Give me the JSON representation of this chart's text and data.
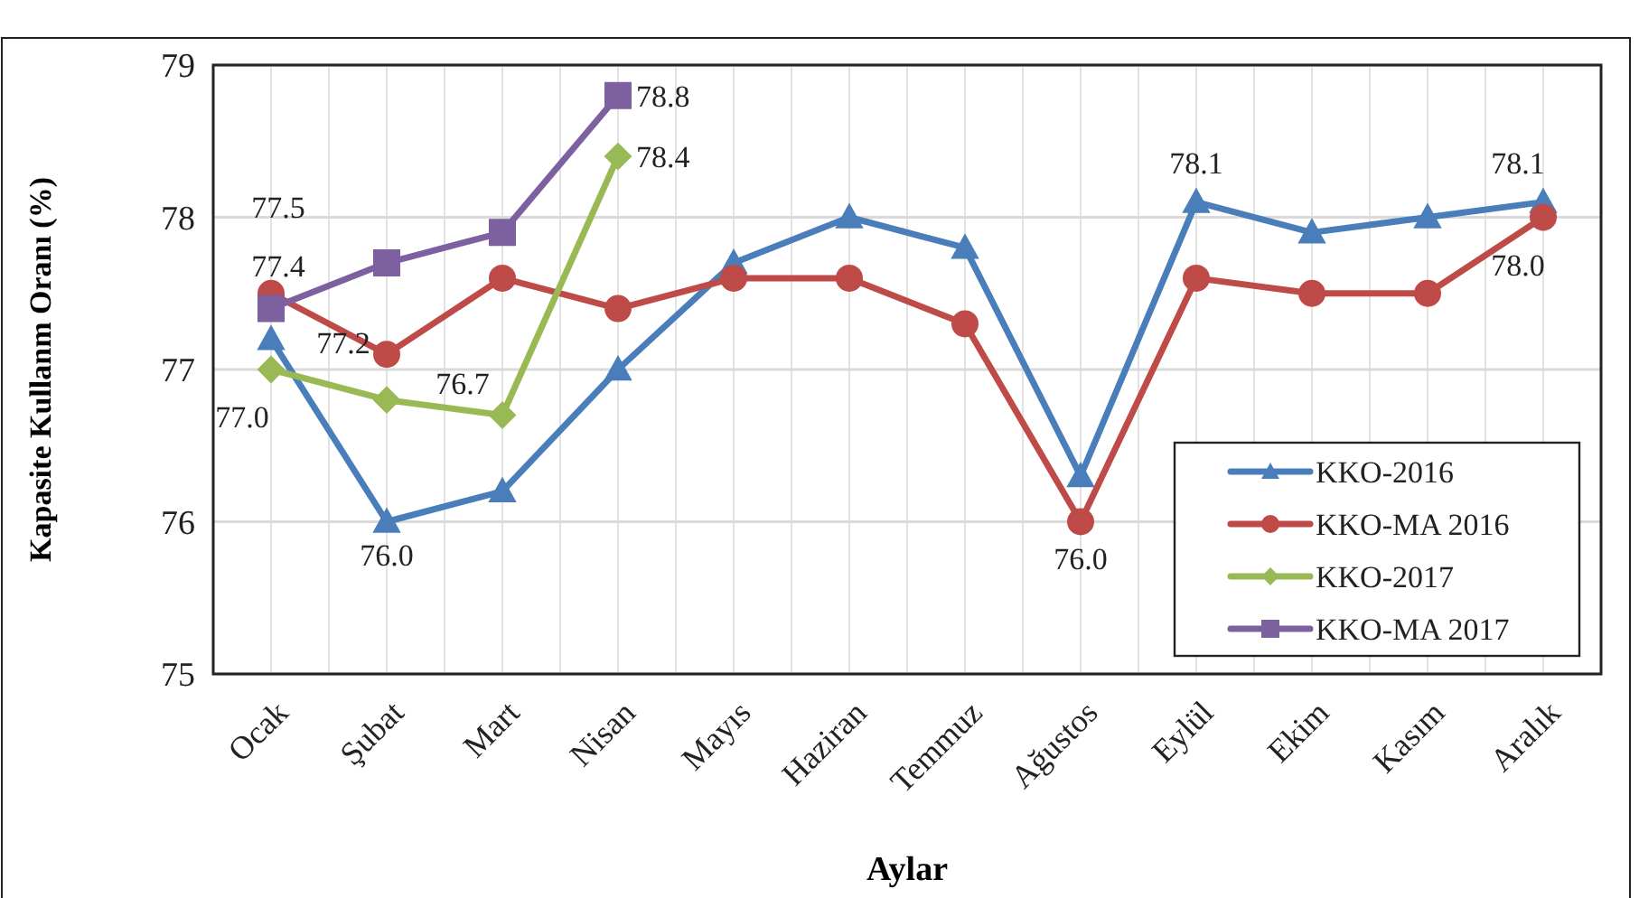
{
  "chart_data": {
    "type": "line",
    "xlabel": "Aylar",
    "ylabel": "Kapasite Kullanm Oranı (%)",
    "categories": [
      "Ocak",
      "Şubat",
      "Mart",
      "Nisan",
      "Mayıs",
      "Haziran",
      "Temmuz",
      "Ağustos",
      "Eylül",
      "Ekim",
      "Kasım",
      "Aralık"
    ],
    "ylim": [
      75,
      79
    ],
    "yticks": [
      75,
      76,
      77,
      78,
      79
    ],
    "grid": true,
    "legend": "bottom right",
    "line_style": "solid",
    "series": [
      {
        "name": "KKO-2016",
        "color": "#4a7ebb",
        "marker": "triangle",
        "values": [
          77.2,
          76.0,
          76.2,
          77.0,
          77.7,
          78.0,
          77.8,
          76.3,
          78.1,
          77.9,
          78.0,
          78.1
        ],
        "value_labels": [
          "77.2",
          "76.0",
          null,
          null,
          null,
          null,
          null,
          null,
          "78.1",
          null,
          null,
          "78.1"
        ]
      },
      {
        "name": "KKO-MA 2016",
        "color": "#be4b48",
        "marker": "circle",
        "values": [
          77.5,
          77.1,
          77.6,
          77.4,
          77.6,
          77.6,
          77.3,
          76.0,
          77.6,
          77.5,
          77.5,
          78.0
        ],
        "value_labels": [
          "77.5",
          null,
          null,
          null,
          null,
          null,
          null,
          "76.0",
          null,
          null,
          null,
          "78.0"
        ]
      },
      {
        "name": "KKO-2017",
        "color": "#98b954",
        "marker": "diamond",
        "values": [
          77.0,
          76.8,
          76.7,
          78.4,
          null,
          null,
          null,
          null,
          null,
          null,
          null,
          null
        ],
        "value_labels": [
          "77.0",
          null,
          "76.7",
          "78.4",
          null,
          null,
          null,
          null,
          null,
          null,
          null,
          null
        ]
      },
      {
        "name": "KKO-MA 2017",
        "color": "#7d60a0",
        "marker": "square",
        "values": [
          77.4,
          77.7,
          77.9,
          78.8,
          null,
          null,
          null,
          null,
          null,
          null,
          null,
          null
        ],
        "value_labels": [
          "77.4",
          null,
          null,
          "78.8",
          null,
          null,
          null,
          null,
          null,
          null,
          null,
          null
        ]
      }
    ]
  }
}
